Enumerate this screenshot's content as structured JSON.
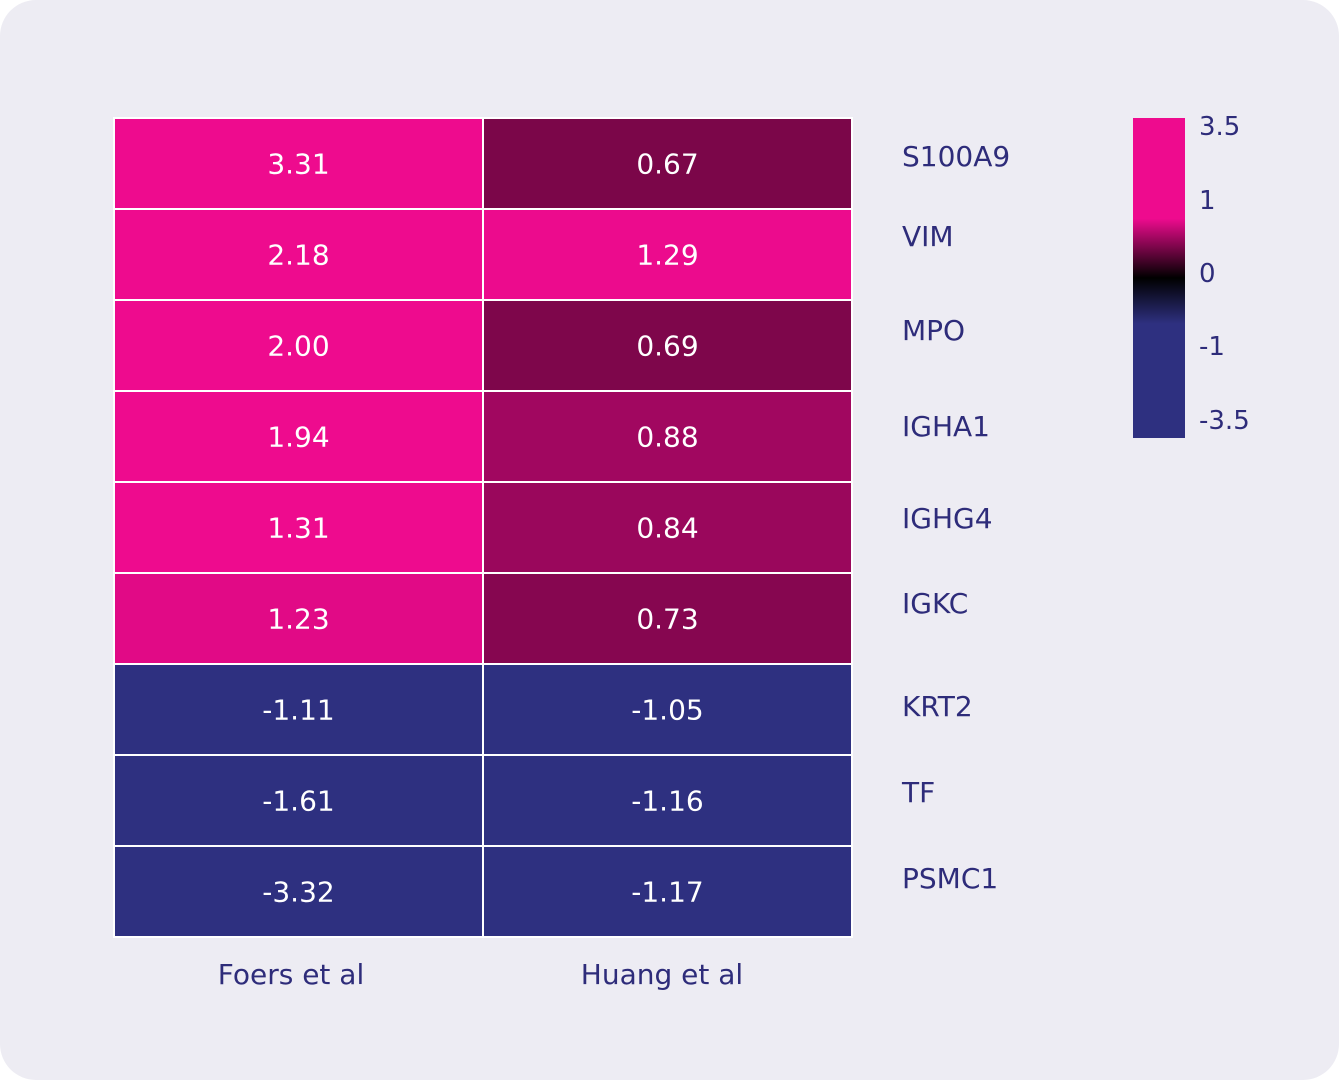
{
  "chart_data": {
    "type": "heatmap",
    "title": "",
    "xlabel": "",
    "ylabel": "",
    "columns": [
      "Foers et al",
      "Huang et al"
    ],
    "rows": [
      "S100A9",
      "VIM",
      "MPO",
      "IGHA1",
      "IGHG4",
      "IGKC",
      "KRT2",
      "TF",
      "PSMC1"
    ],
    "values": [
      [
        3.31,
        0.67
      ],
      [
        2.18,
        1.29
      ],
      [
        2.0,
        0.69
      ],
      [
        1.94,
        0.88
      ],
      [
        1.31,
        0.84
      ],
      [
        1.23,
        0.73
      ],
      [
        -1.11,
        -1.05
      ],
      [
        -1.61,
        -1.16
      ],
      [
        -3.32,
        -1.17
      ]
    ],
    "value_labels": [
      [
        "3.31",
        "0.67"
      ],
      [
        "2.18",
        "1.29"
      ],
      [
        "2.00",
        "0.69"
      ],
      [
        "1.94",
        "0.88"
      ],
      [
        "1.31",
        "0.84"
      ],
      [
        "1.23",
        "0.73"
      ],
      [
        "-1.11",
        "-1.05"
      ],
      [
        "-1.61",
        "-1.16"
      ],
      [
        "-3.32",
        "-1.17"
      ]
    ],
    "colorscale": {
      "range": [
        -3.5,
        3.5
      ],
      "ticks": [
        3.5,
        1,
        0,
        -1,
        -3.5
      ],
      "tick_labels": [
        "3.5",
        "1",
        "0",
        "-1",
        "-3.5"
      ],
      "stops": [
        {
          "value": -3.5,
          "color": "#2e3080"
        },
        {
          "value": -1,
          "color": "#2e3080"
        },
        {
          "value": 0,
          "color": "#000000"
        },
        {
          "value": 1.3,
          "color": "#ee0b8e"
        },
        {
          "value": 3.5,
          "color": "#ee0b8e"
        }
      ],
      "placement": "right"
    },
    "colors": {
      "background": "#edecf3",
      "label_text": "#2e2c7a",
      "cell_text": "#ffffff",
      "grid": "#ffffff"
    }
  }
}
